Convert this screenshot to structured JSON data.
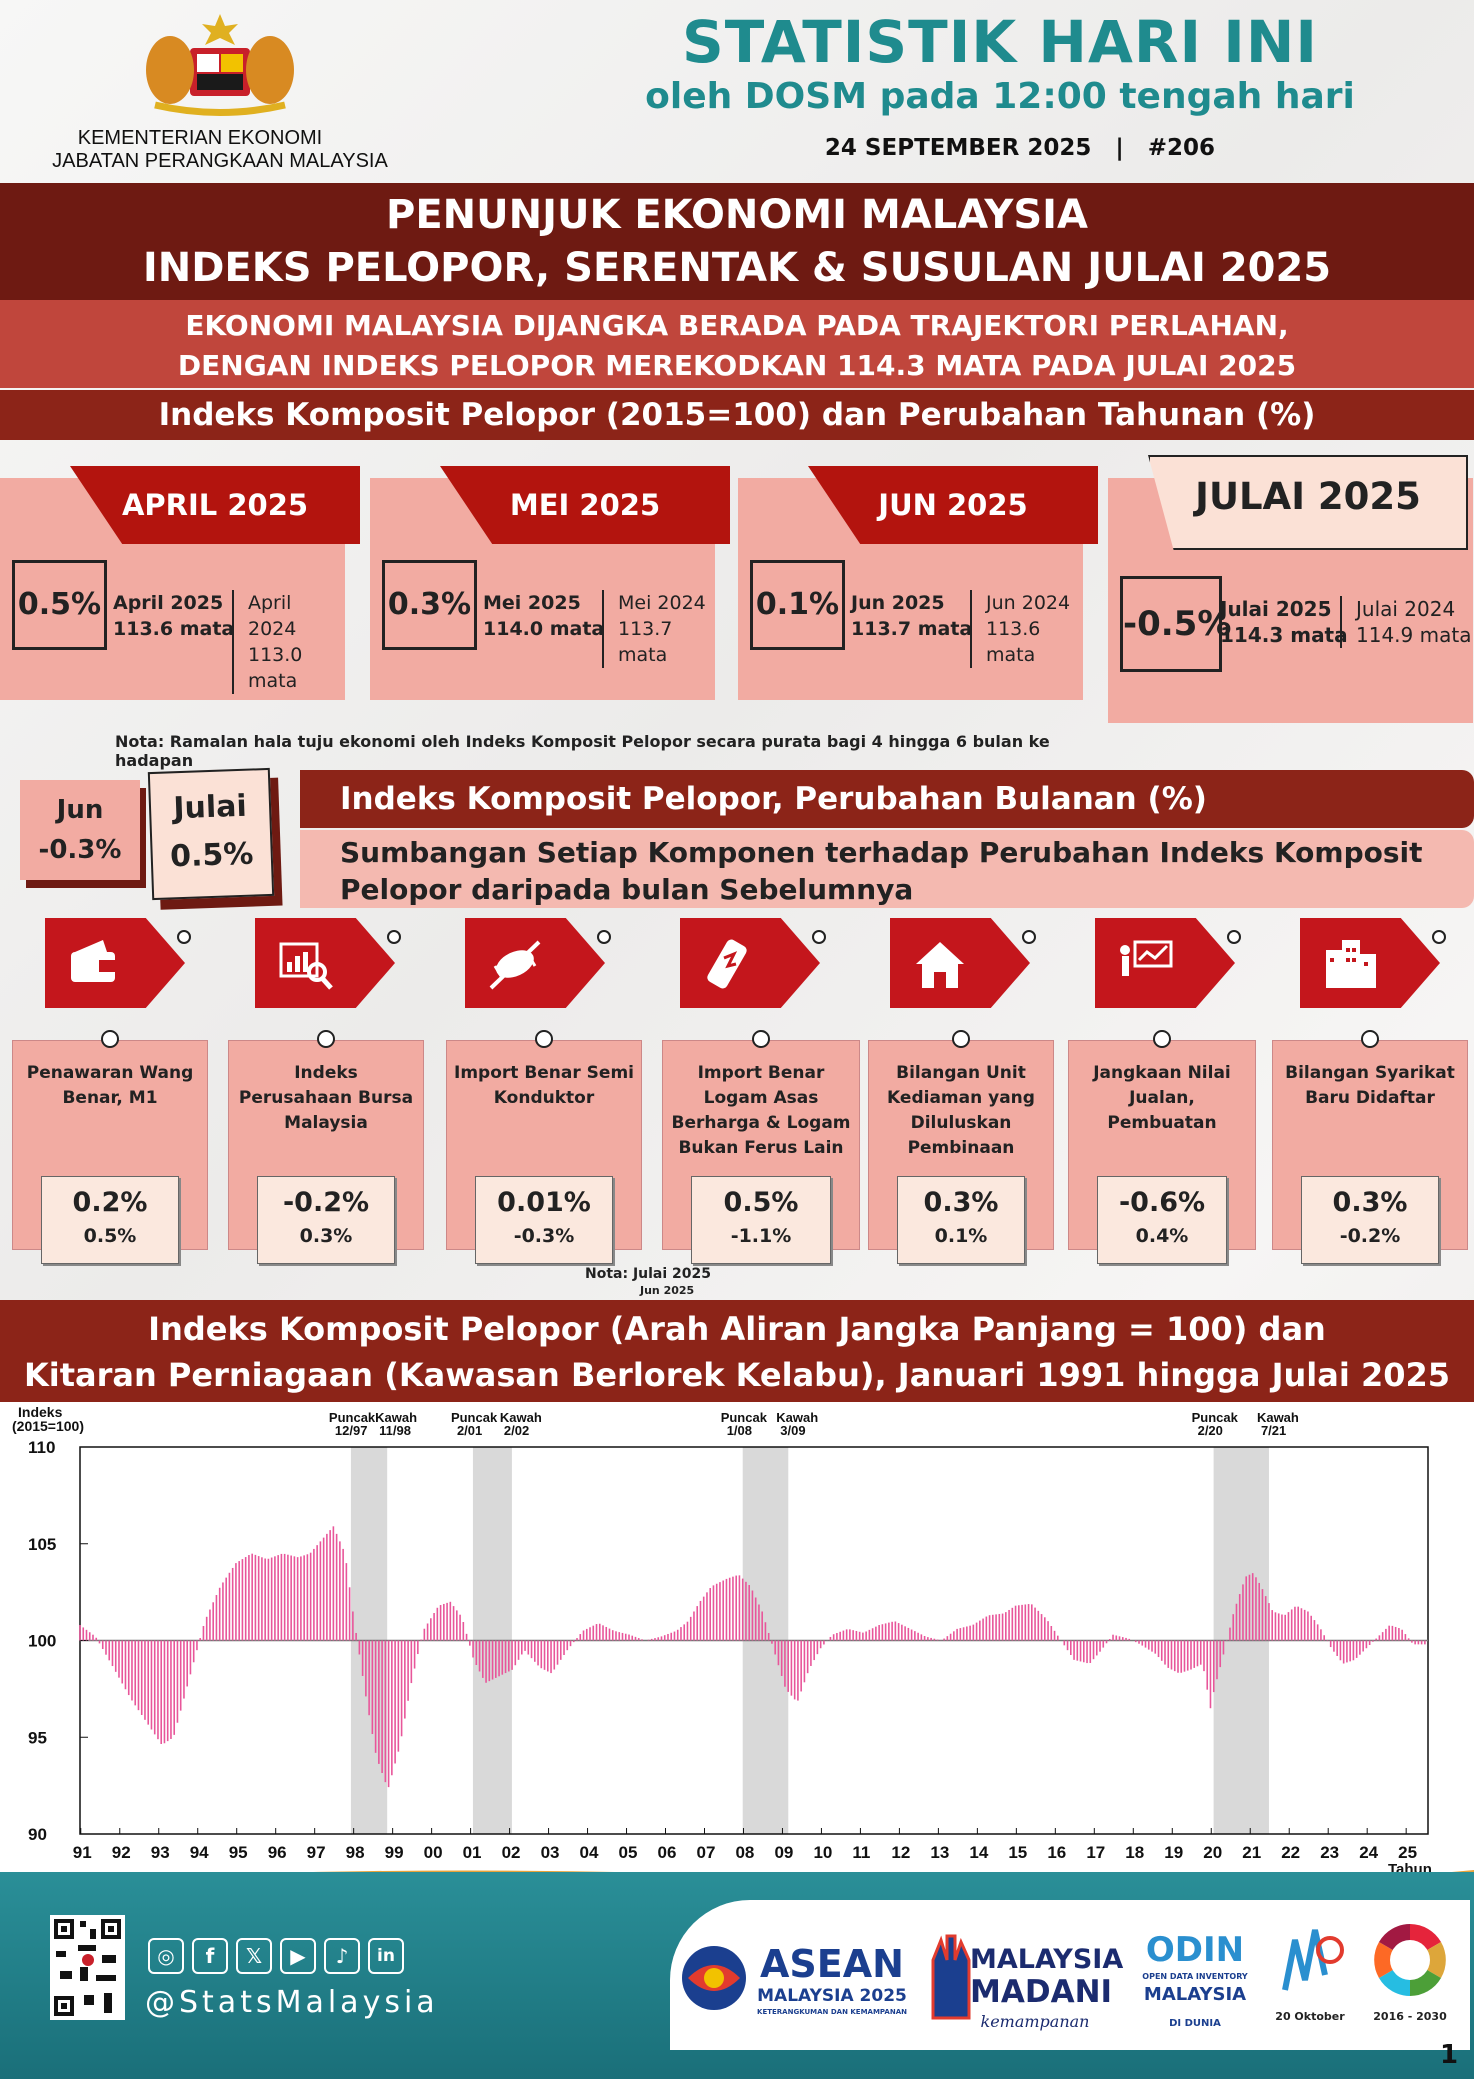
{
  "header": {
    "title": "STATISTIK HARI INI",
    "subtitle": "oleh DOSM pada 12:00 tengah hari",
    "date_line": "24 SEPTEMBER 2025   |   #206",
    "ministry": "KEMENTERIAN EKONOMI",
    "department": "JABATAN PERANGKAAN MALAYSIA"
  },
  "banners": {
    "title1": "PENUNJUK EKONOMI MALAYSIA",
    "title2": "INDEKS PELOPOR, SERENTAK & SUSULAN JULAI 2025",
    "headline1": "EKONOMI MALAYSIA DIJANGKA BERADA PADA TRAJEKTORI PERLAHAN,",
    "headline2": "DENGAN INDEKS PELOPOR MEREKODKAN 114.3 MATA PADA JULAI 2025",
    "section1": "Indeks Komposit Pelopor (2015=100) dan Perubahan Tahunan (%)",
    "section2": "Indeks Komposit Pelopor, Perubahan Bulanan (%)",
    "section3": "Sumbangan Setiap Komponen terhadap Perubahan Indeks Komposit Pelopor daripada bulan Sebelumnya",
    "chart_title1": "Indeks Komposit Pelopor (Arah Aliran Jangka Panjang = 100) dan",
    "chart_title2": "Kitaran Perniagaan (Kawasan Berlorek Kelabu), Januari 1991 hingga Julai 2025"
  },
  "months": [
    {
      "tab": "APRIL 2025",
      "pct": "0.5%",
      "cur_label": "April 2025",
      "cur_val": "113.6 mata",
      "prev_label": "April 2024",
      "prev_val": "113.0 mata"
    },
    {
      "tab": "MEI 2025",
      "pct": "0.3%",
      "cur_label": "Mei 2025",
      "cur_val": "114.0 mata",
      "prev_label": "Mei 2024",
      "prev_val": "113.7 mata"
    },
    {
      "tab": "JUN 2025",
      "pct": "0.1%",
      "cur_label": "Jun 2025",
      "cur_val": "113.7 mata",
      "prev_label": "Jun 2024",
      "prev_val": "113.6 mata"
    },
    {
      "tab": "JULAI 2025",
      "pct": "-0.5%",
      "cur_label": "Julai 2025",
      "cur_val": "114.3 mata",
      "prev_label": "Julai 2024",
      "prev_val": "114.9 mata"
    }
  ],
  "nota1": "Nota: Ramalan hala tuju ekonomi oleh Indeks Komposit Pelopor secara purata bagi 4 hingga 6 bulan ke hadapan",
  "monthly": {
    "jun_label": "Jun",
    "jun_val": "-0.3%",
    "jul_label": "Julai",
    "jul_val": "0.5%"
  },
  "components": [
    {
      "icon": "wallet-icon",
      "name": "Penawaran Wang Benar, M1",
      "v1": "0.2%",
      "v2": "0.5%"
    },
    {
      "icon": "stock-search-icon",
      "name": "Indeks Perusahaan Bursa Malaysia",
      "v1": "-0.2%",
      "v2": "0.3%"
    },
    {
      "icon": "chip-icon",
      "name": "Import Benar Semi Konduktor",
      "v1": "0.01%",
      "v2": "-0.3%"
    },
    {
      "icon": "metal-bar-icon",
      "name": "Import Benar Logam Asas Berharga & Logam Bukan Ferus Lain",
      "v1": "0.5%",
      "v2": "-1.1%"
    },
    {
      "icon": "house-icon",
      "name": "Bilangan Unit Kediaman yang Diluluskan Pembinaan",
      "v1": "0.3%",
      "v2": "0.1%"
    },
    {
      "icon": "sales-presentation-icon",
      "name": "Jangkaan Nilai Jualan, Pembuatan",
      "v1": "-0.6%",
      "v2": "0.4%"
    },
    {
      "icon": "buildings-icon",
      "name": "Bilangan Syarikat Baru Didaftar",
      "v1": "0.3%",
      "v2": "-0.2%"
    }
  ],
  "nota2": "Nota: Julai 2025",
  "nota3": "Jun 2025",
  "chart_data": {
    "type": "bar",
    "ylabel": "Indeks (2015=100)",
    "xlabel": "Tahun",
    "ylim": [
      90,
      110
    ],
    "yticks": [
      90,
      95,
      100,
      105,
      110
    ],
    "baseline": 100,
    "xticks": [
      "91",
      "92",
      "93",
      "94",
      "95",
      "96",
      "97",
      "98",
      "99",
      "00",
      "01",
      "02",
      "03",
      "04",
      "05",
      "06",
      "07",
      "08",
      "09",
      "10",
      "11",
      "12",
      "13",
      "14",
      "15",
      "16",
      "17",
      "18",
      "19",
      "20",
      "21",
      "22",
      "23",
      "24",
      "25"
    ],
    "x_range": [
      1991.0,
      2025.58
    ],
    "shaded_periods": [
      {
        "start": 1997.95,
        "end": 1998.88,
        "peak_label": "Puncak",
        "peak": "12/97",
        "trough_label": "Kawah",
        "trough": "11/98"
      },
      {
        "start": 2001.08,
        "end": 2002.08,
        "peak_label": "Puncak",
        "peak": "2/01",
        "trough_label": "Kawah",
        "trough": "2/02"
      },
      {
        "start": 2008.0,
        "end": 2009.17,
        "peak_label": "Puncak",
        "peak": "1/08",
        "trough_label": "Kawah",
        "trough": "3/09"
      },
      {
        "start": 2020.08,
        "end": 2021.5,
        "peak_label": "Puncak",
        "peak": "2/20",
        "trough_label": "Kawah",
        "trough": "7/21"
      }
    ],
    "series": [
      {
        "color": "#e8569a",
        "points": [
          [
            1991.0,
            100.8
          ],
          [
            1991.4,
            100.2
          ],
          [
            1991.8,
            98.8
          ],
          [
            1992.3,
            97.0
          ],
          [
            1992.8,
            95.5
          ],
          [
            1993.1,
            94.6
          ],
          [
            1993.4,
            95.0
          ],
          [
            1993.8,
            98.0
          ],
          [
            1994.2,
            101.0
          ],
          [
            1994.6,
            102.8
          ],
          [
            1995.0,
            104.0
          ],
          [
            1995.4,
            104.5
          ],
          [
            1995.8,
            104.2
          ],
          [
            1996.2,
            104.5
          ],
          [
            1996.6,
            104.3
          ],
          [
            1996.9,
            104.5
          ],
          [
            1997.2,
            105.2
          ],
          [
            1997.5,
            105.9
          ],
          [
            1997.8,
            104.5
          ],
          [
            1998.0,
            101.5
          ],
          [
            1998.3,
            97.5
          ],
          [
            1998.6,
            94.0
          ],
          [
            1998.9,
            92.3
          ],
          [
            1999.2,
            94.5
          ],
          [
            1999.5,
            97.8
          ],
          [
            1999.8,
            100.5
          ],
          [
            2000.2,
            101.8
          ],
          [
            2000.5,
            102.0
          ],
          [
            2000.8,
            101.2
          ],
          [
            2001.1,
            99.0
          ],
          [
            2001.4,
            97.8
          ],
          [
            2001.8,
            98.2
          ],
          [
            2002.1,
            98.5
          ],
          [
            2002.4,
            99.5
          ],
          [
            2002.8,
            98.6
          ],
          [
            2003.1,
            98.3
          ],
          [
            2003.5,
            99.5
          ],
          [
            2003.9,
            100.5
          ],
          [
            2004.3,
            100.9
          ],
          [
            2004.7,
            100.5
          ],
          [
            2005.1,
            100.3
          ],
          [
            2005.5,
            100.0
          ],
          [
            2005.9,
            100.2
          ],
          [
            2006.3,
            100.5
          ],
          [
            2006.6,
            101.0
          ],
          [
            2006.9,
            102.0
          ],
          [
            2007.2,
            102.8
          ],
          [
            2007.6,
            103.2
          ],
          [
            2007.9,
            103.4
          ],
          [
            2008.2,
            102.8
          ],
          [
            2008.5,
            101.5
          ],
          [
            2008.8,
            99.5
          ],
          [
            2009.1,
            97.5
          ],
          [
            2009.4,
            96.8
          ],
          [
            2009.7,
            98.5
          ],
          [
            2010.0,
            99.6
          ],
          [
            2010.3,
            100.3
          ],
          [
            2010.7,
            100.6
          ],
          [
            2011.1,
            100.4
          ],
          [
            2011.5,
            100.8
          ],
          [
            2011.9,
            101.0
          ],
          [
            2012.3,
            100.6
          ],
          [
            2012.7,
            100.2
          ],
          [
            2013.1,
            100.0
          ],
          [
            2013.5,
            100.6
          ],
          [
            2013.9,
            100.8
          ],
          [
            2014.3,
            101.3
          ],
          [
            2014.7,
            101.4
          ],
          [
            2015.0,
            101.8
          ],
          [
            2015.4,
            101.9
          ],
          [
            2015.8,
            101.1
          ],
          [
            2016.1,
            100.2
          ],
          [
            2016.5,
            99.0
          ],
          [
            2016.9,
            98.8
          ],
          [
            2017.2,
            99.5
          ],
          [
            2017.5,
            100.3
          ],
          [
            2017.9,
            100.1
          ],
          [
            2018.2,
            99.8
          ],
          [
            2018.6,
            99.3
          ],
          [
            2018.9,
            98.6
          ],
          [
            2019.2,
            98.3
          ],
          [
            2019.5,
            98.5
          ],
          [
            2019.8,
            98.8
          ],
          [
            2020.0,
            96.5
          ],
          [
            2020.1,
            97.5
          ],
          [
            2020.3,
            99.0
          ],
          [
            2020.6,
            101.5
          ],
          [
            2020.9,
            103.3
          ],
          [
            2021.1,
            103.5
          ],
          [
            2021.3,
            102.8
          ],
          [
            2021.6,
            101.5
          ],
          [
            2021.9,
            101.3
          ],
          [
            2022.2,
            101.8
          ],
          [
            2022.5,
            101.5
          ],
          [
            2022.8,
            100.7
          ],
          [
            2023.1,
            99.6
          ],
          [
            2023.4,
            98.8
          ],
          [
            2023.7,
            99.0
          ],
          [
            2024.0,
            99.6
          ],
          [
            2024.3,
            100.2
          ],
          [
            2024.6,
            100.8
          ],
          [
            2024.9,
            100.6
          ],
          [
            2025.2,
            99.8
          ],
          [
            2025.58,
            99.8
          ]
        ]
      }
    ]
  },
  "footer": {
    "handle": "@StatsMalaysia",
    "social": [
      "instagram-icon",
      "facebook-icon",
      "x-icon",
      "youtube-icon",
      "tiktok-icon",
      "linkedin-icon"
    ],
    "logo1_a": "ASEAN",
    "logo1_b": "MALAYSIA 2025",
    "logo1_c": "KETERANGKUMAN DAN KEMAMPANAN",
    "logo2_a": "MALAYSIA",
    "logo2_b": "MADANI",
    "logo2_c": "kemampanan",
    "logo3_a": "ODIN",
    "logo3_b": "OPEN DATA INVENTORY",
    "logo3_c": "MALAYSIA",
    "logo3_d": "DI DUNIA",
    "logo4": "20 Oktober",
    "logo5": "2016 - 2030",
    "page": "1"
  }
}
